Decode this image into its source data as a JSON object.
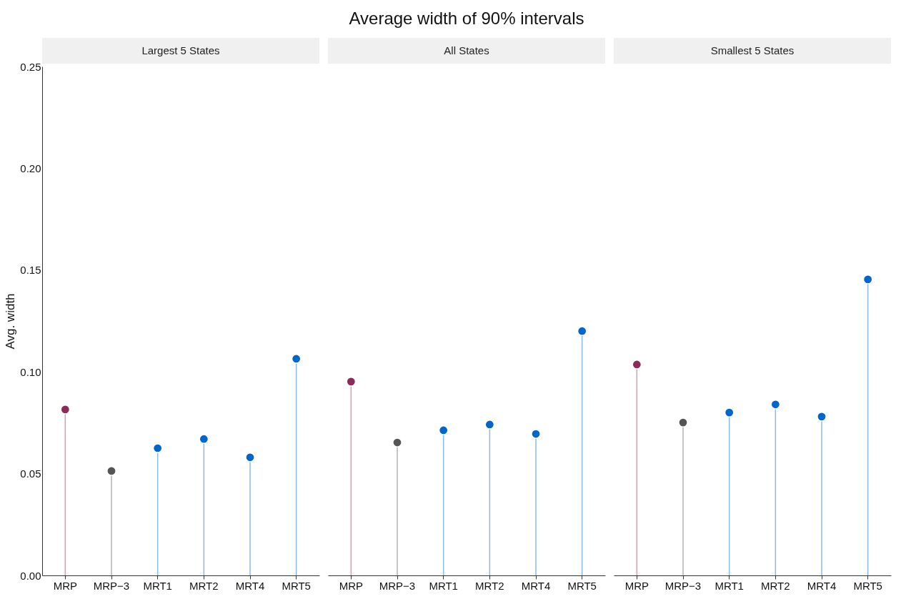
{
  "chart_data": [
    {
      "type": "lollipop",
      "subtitle": "Largest 5 States",
      "ylabel": "Avg. width",
      "categories": [
        "MRP",
        "MRP−3",
        "MRT1",
        "MRT2",
        "MRT4",
        "MRT5"
      ],
      "values": [
        0.0815,
        0.0513,
        0.0625,
        0.067,
        0.058,
        0.1064
      ],
      "colors": [
        "#8e2a5a",
        "#555555",
        "#0066cc",
        "#0066cc",
        "#0066cc",
        "#0066cc"
      ],
      "ylim": [
        0,
        0.25
      ],
      "yticks": [
        {
          "value": 0,
          "label": "0.00"
        },
        0.05,
        {
          "value": 0.1,
          "label": "0.10"
        },
        0.15,
        {
          "value": 0.2,
          "label": "0.20"
        },
        0.25
      ],
      "grid": false,
      "legend": false,
      "marker": "circle"
    },
    {
      "type": "lollipop",
      "title": "Average width of 90% intervals",
      "subtitle": "All States",
      "categories": [
        "MRP",
        "MRP−3",
        "MRT1",
        "MRT2",
        "MRT4",
        "MRT5"
      ],
      "values": [
        0.0952,
        0.0653,
        0.0713,
        0.0741,
        0.0695,
        0.12
      ],
      "colors": [
        "#8e2a5a",
        "#555555",
        "#0066cc",
        "#0066cc",
        "#0066cc",
        "#0066cc"
      ],
      "ylim": [
        0,
        0.25
      ],
      "tick_labels": "x",
      "grid": false,
      "legend": false,
      "marker": "circle"
    },
    {
      "type": "lollipop",
      "subtitle": "Smallest 5 States",
      "categories": [
        "MRP",
        "MRP−3",
        "MRT1",
        "MRT2",
        "MRT4",
        "MRT5"
      ],
      "values": [
        0.1036,
        0.0751,
        0.08,
        0.084,
        0.078,
        0.1454
      ],
      "colors": [
        "#8e2a5a",
        "#555555",
        "#0066cc",
        "#0066cc",
        "#0066cc",
        "#0066cc"
      ],
      "ylim": [
        0,
        0.25
      ],
      "tick_labels": "x",
      "grid": false,
      "legend": false,
      "marker": "circle"
    }
  ]
}
